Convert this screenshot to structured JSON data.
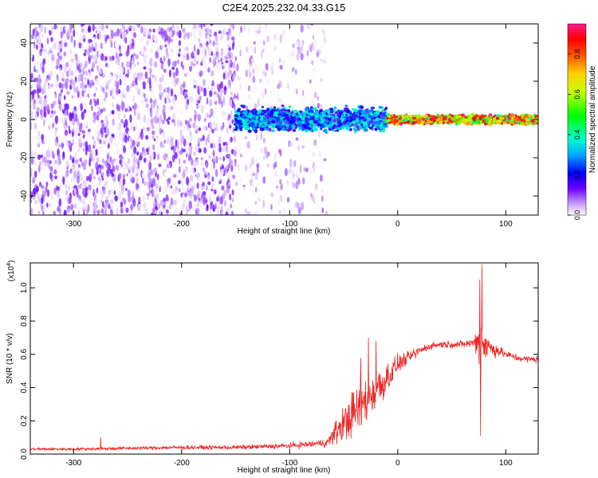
{
  "title": "C2E4.2025.232.04.33.G15",
  "chart_data": [
    {
      "type": "heatmap",
      "xlabel": "Height of straight line (km)",
      "ylabel": "Frequency (Hz)",
      "xlim": [
        -340,
        130
      ],
      "ylim": [
        -50,
        50
      ],
      "xticks": [
        -300,
        -200,
        -100,
        0,
        100
      ],
      "yticks": [
        -40,
        -20,
        0,
        20,
        40
      ],
      "colorbar": {
        "label": "Normalized spectral amplitude",
        "range": [
          0,
          0.95
        ],
        "ticks": [
          0.0,
          0.2,
          0.4,
          0.6,
          0.8
        ],
        "tick_labels": [
          "0.0",
          "0.2",
          "0.4",
          "0.6",
          "0.8"
        ]
      },
      "regions": [
        {
          "x_range": [
            -340,
            -150
          ],
          "description": "diffuse scatter across full frequency band",
          "amplitude_range": [
            0.0,
            0.15
          ]
        },
        {
          "x_range": [
            -150,
            -65
          ],
          "description": "fading scatter",
          "amplitude_range": [
            0.0,
            0.1
          ]
        },
        {
          "x_range": [
            -150,
            -10
          ],
          "description": "broad signal band near 0 Hz",
          "freq_width": 8,
          "amplitude_range": [
            0.1,
            0.4
          ]
        },
        {
          "x_range": [
            -10,
            130
          ],
          "description": "narrow signal band at 0 Hz",
          "freq_width": 3,
          "amplitude_range": [
            0.4,
            0.95
          ]
        }
      ]
    },
    {
      "type": "line",
      "xlabel": "Height of straight line (km)",
      "ylabel": "SNR (10 * v/v)",
      "y_multiplier": "(x10",
      "y_multiplier_exp": "4",
      "xlim": [
        -340,
        130
      ],
      "ylim": [
        0,
        1.15
      ],
      "xticks": [
        -300,
        -200,
        -100,
        0,
        100
      ],
      "yticks": [
        0.0,
        0.2,
        0.4,
        0.6,
        0.8,
        1.0
      ],
      "line_color": "#ee2222",
      "series": [
        {
          "x": [
            -340,
            -300,
            -250,
            -200,
            -150,
            -100,
            -80,
            -65,
            -55,
            -45,
            -35,
            -25,
            -15,
            -5,
            0,
            10,
            20,
            30,
            40,
            50,
            60,
            70,
            75,
            78,
            80,
            85,
            90,
            100,
            110,
            120,
            130
          ],
          "values": [
            0.03,
            0.03,
            0.035,
            0.04,
            0.04,
            0.05,
            0.06,
            0.07,
            0.15,
            0.22,
            0.28,
            0.36,
            0.42,
            0.5,
            0.54,
            0.58,
            0.62,
            0.65,
            0.66,
            0.66,
            0.66,
            0.67,
            0.68,
            0.72,
            0.66,
            0.64,
            0.63,
            0.6,
            0.58,
            0.57,
            0.57
          ],
          "noise": [
            0.008,
            0.008,
            0.01,
            0.01,
            0.012,
            0.015,
            0.02,
            0.025,
            0.08,
            0.12,
            0.14,
            0.13,
            0.11,
            0.08,
            0.05,
            0.03,
            0.03,
            0.02,
            0.02,
            0.02,
            0.02,
            0.03,
            0.1,
            0.18,
            0.12,
            0.06,
            0.04,
            0.02,
            0.02,
            0.02,
            0.02
          ],
          "spikes": [
            {
              "x": 78,
              "value": 1.14
            },
            {
              "x": 76,
              "value": 1.05
            },
            {
              "x": -27,
              "value": 0.7
            },
            {
              "x": -20,
              "value": 0.68
            },
            {
              "x": -34,
              "value": 0.58
            },
            {
              "x": 76.5,
              "value": 0.11
            },
            {
              "x": -275,
              "value": 0.1
            }
          ]
        }
      ]
    }
  ]
}
